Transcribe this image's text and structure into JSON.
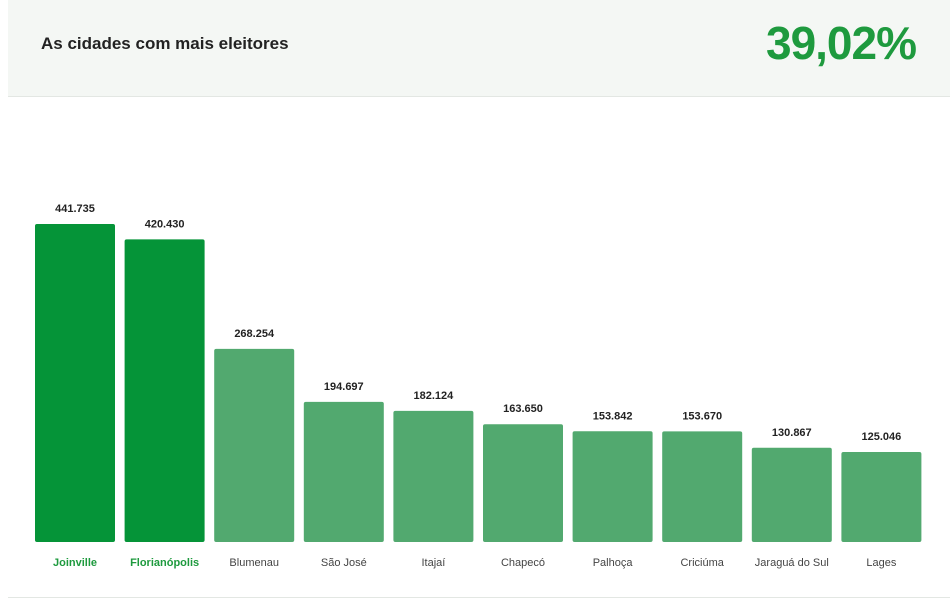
{
  "header": {
    "title": "As cidades com mais eleitores",
    "value": "39,02%"
  },
  "colors": {
    "highlight_bar": "#059438",
    "normal_bar": "#52a96f",
    "highlight_text": "#1e9a3e"
  },
  "chart_data": {
    "type": "bar",
    "categories": [
      "Joinville",
      "Florianópolis",
      "Blumenau",
      "São José",
      "Itajaí",
      "Chapecó",
      "Palhoça",
      "Criciúma",
      "Jaraguá do Sul",
      "Lages"
    ],
    "values": [
      441735,
      420430,
      268254,
      194697,
      182124,
      163650,
      153842,
      153670,
      130867,
      125046
    ],
    "value_labels": [
      "441.735",
      "420.430",
      "268.254",
      "194.697",
      "182.124",
      "163.650",
      "153.842",
      "153.670",
      "130.867",
      "125.046"
    ],
    "highlighted": [
      true,
      true,
      false,
      false,
      false,
      false,
      false,
      false,
      false,
      false
    ],
    "title": "",
    "xlabel": "",
    "ylabel": "",
    "ylim": [
      0,
      441735
    ],
    "grid": false
  }
}
